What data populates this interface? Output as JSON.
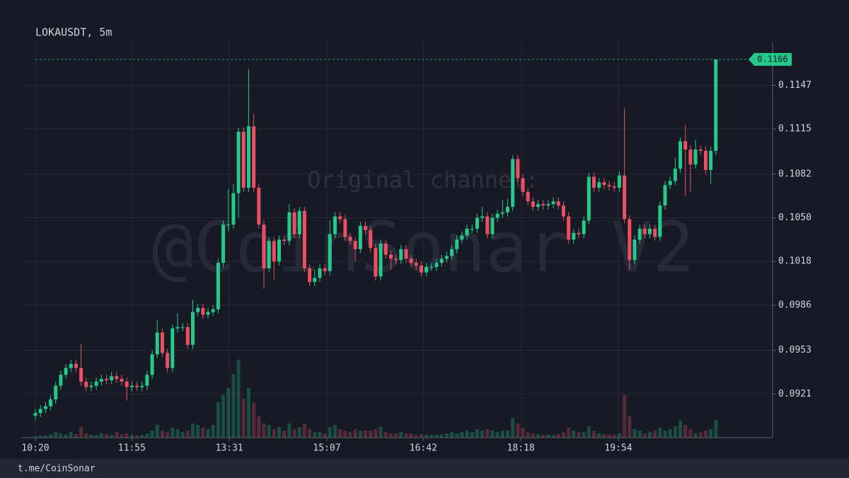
{
  "chart_data": {
    "type": "candlestick",
    "title": "LOKAUSDT, 5m",
    "watermark": [
      "Original channel:",
      "@CoinSonar V2"
    ],
    "up_color": "#26c88c",
    "down_color": "#ec4f63",
    "grid": true,
    "ylim": [
      0.0889,
      0.1168
    ],
    "yticks": [
      0.0921,
      0.0953,
      0.0986,
      0.1018,
      {
        "value": 0.105,
        "label": "0.1050"
      },
      0.1082,
      0.1115,
      0.1147
    ],
    "xticks": [
      "10:20",
      "11:55",
      "13:31",
      "15:07",
      "16:42",
      "18:18",
      "19:54"
    ],
    "x": [
      "10:20",
      "10:25",
      "10:30",
      "10:35",
      "10:40",
      "10:45",
      "10:50",
      "10:55",
      "11:00",
      "11:05",
      "11:10",
      "11:15",
      "11:20",
      "11:25",
      "11:30",
      "11:35",
      "11:40",
      "11:45",
      "11:50",
      "11:55",
      "12:00",
      "12:05",
      "12:10",
      "12:15",
      "12:20",
      "12:25",
      "12:30",
      "12:35",
      "12:40",
      "12:45",
      "12:50",
      "12:55",
      "13:00",
      "13:05",
      "13:10",
      "13:15",
      "13:20",
      "13:25",
      "13:30",
      "13:35",
      "13:40",
      "13:45",
      "13:50",
      "13:55",
      "14:00",
      "14:05",
      "14:10",
      "14:15",
      "14:20",
      "14:25",
      "14:30",
      "14:35",
      "14:40",
      "14:45",
      "14:50",
      "14:55",
      "15:00",
      "15:05",
      "15:10",
      "15:15",
      "15:20",
      "15:25",
      "15:30",
      "15:35",
      "15:40",
      "15:45",
      "15:50",
      "15:55",
      "16:00",
      "16:05",
      "16:10",
      "16:15",
      "16:20",
      "16:25",
      "16:30",
      "16:35",
      "16:40",
      "16:45",
      "16:50",
      "16:55",
      "17:00",
      "17:05",
      "17:10",
      "17:15",
      "17:20",
      "17:25",
      "17:30",
      "17:35",
      "17:40",
      "17:45",
      "17:50",
      "17:55",
      "18:00",
      "18:05",
      "18:10",
      "18:15",
      "18:20",
      "18:25",
      "18:30",
      "18:35",
      "18:40",
      "18:45",
      "18:50",
      "18:55",
      "19:00",
      "19:05",
      "19:10",
      "19:15",
      "19:20",
      "19:25",
      "19:30",
      "19:35",
      "19:40",
      "19:45",
      "19:50",
      "19:55",
      "20:00",
      "20:05",
      "20:10",
      "20:15",
      "20:20",
      "20:25",
      "20:30",
      "20:35",
      "20:40",
      "20:45",
      "20:50",
      "20:55",
      "21:00",
      "21:05",
      "21:10",
      "21:15",
      "21:20",
      "21:25",
      "21:30"
    ],
    "open": [
      0.0905,
      0.0907,
      0.091,
      0.0912,
      0.0917,
      0.0927,
      0.0935,
      0.094,
      0.0943,
      0.094,
      0.093,
      0.0926,
      0.0927,
      0.093,
      0.0932,
      0.0931,
      0.0934,
      0.0932,
      0.093,
      0.0926,
      0.0927,
      0.0926,
      0.0927,
      0.0935,
      0.095,
      0.0966,
      0.0951,
      0.094,
      0.0969,
      0.097,
      0.097,
      0.0957,
      0.0981,
      0.0984,
      0.0979,
      0.0981,
      0.0983,
      0.1017,
      0.1045,
      0.1045,
      0.1068,
      0.1113,
      0.1072,
      0.1117,
      0.1072,
      0.1045,
      0.1013,
      0.1033,
      0.1018,
      0.1034,
      0.1033,
      0.1054,
      0.1038,
      0.1055,
      0.1013,
      0.1003,
      0.1006,
      0.1013,
      0.1011,
      0.1038,
      0.1051,
      0.1049,
      0.1036,
      0.1033,
      0.1027,
      0.1044,
      0.1041,
      0.1028,
      0.1007,
      0.1031,
      0.1023,
      0.102,
      0.1019,
      0.1027,
      0.102,
      0.1017,
      0.1015,
      0.101,
      0.1014,
      0.1014,
      0.1017,
      0.102,
      0.1022,
      0.1027,
      0.1034,
      0.1037,
      0.1042,
      0.1042,
      0.105,
      0.1051,
      0.1038,
      0.105,
      0.1053,
      0.1054,
      0.1058,
      0.1093,
      0.1079,
      0.1069,
      0.1062,
      0.1058,
      0.106,
      0.1059,
      0.106,
      0.1062,
      0.1059,
      0.1051,
      0.1034,
      0.1039,
      0.1038,
      0.1048,
      0.108,
      0.1072,
      0.1076,
      0.1074,
      0.1073,
      0.1072,
      0.1081,
      0.1049,
      0.1019,
      0.1034,
      0.1042,
      0.1038,
      0.1042,
      0.1036,
      0.1059,
      0.1074,
      0.1077,
      0.1086,
      0.1106,
      0.11,
      0.1089,
      0.11,
      0.1099,
      0.1085,
      0.1099
    ],
    "high": [
      0.091,
      0.0913,
      0.0915,
      0.092,
      0.093,
      0.0938,
      0.0943,
      0.0946,
      0.0946,
      0.0958,
      0.0933,
      0.093,
      0.0933,
      0.0935,
      0.0935,
      0.0937,
      0.0937,
      0.0935,
      0.0933,
      0.093,
      0.093,
      0.093,
      0.0938,
      0.0953,
      0.0975,
      0.0969,
      0.0954,
      0.0972,
      0.098,
      0.0973,
      0.0973,
      0.099,
      0.0987,
      0.0987,
      0.0984,
      0.0986,
      0.102,
      0.1048,
      0.1071,
      0.1075,
      0.1116,
      0.1116,
      0.1159,
      0.1126,
      0.1075,
      0.1048,
      0.1036,
      0.1036,
      0.1037,
      0.1037,
      0.106,
      0.1057,
      0.1058,
      0.1058,
      0.1016,
      0.1012,
      0.1016,
      0.1016,
      0.1048,
      0.1054,
      0.1054,
      0.1052,
      0.1039,
      0.1036,
      0.1047,
      0.1047,
      0.1044,
      0.1031,
      0.1034,
      0.1034,
      0.1026,
      0.1023,
      0.103,
      0.103,
      0.1023,
      0.102,
      0.1018,
      0.1017,
      0.1017,
      0.102,
      0.1023,
      0.1025,
      0.103,
      0.1037,
      0.104,
      0.1045,
      0.1045,
      0.1053,
      0.1058,
      0.1054,
      0.1053,
      0.1056,
      0.1063,
      0.1064,
      0.1096,
      0.1096,
      0.1082,
      0.1072,
      0.1065,
      0.1063,
      0.1063,
      0.1063,
      0.1065,
      0.1065,
      0.1062,
      0.1054,
      0.1042,
      0.1042,
      0.1051,
      0.1083,
      0.1083,
      0.1079,
      0.1079,
      0.1077,
      0.1076,
      0.1084,
      0.113,
      0.1052,
      0.1037,
      0.1045,
      0.1045,
      0.1045,
      0.1045,
      0.1062,
      0.1077,
      0.108,
      0.1094,
      0.1109,
      0.1118,
      0.1103,
      0.1107,
      0.1103,
      0.1102,
      0.1102,
      0.1166
    ],
    "low": [
      0.0902,
      0.0904,
      0.0907,
      0.0909,
      0.0914,
      0.0924,
      0.0932,
      0.0937,
      0.0937,
      0.0927,
      0.0923,
      0.0923,
      0.0924,
      0.0927,
      0.0928,
      0.0928,
      0.0929,
      0.0927,
      0.0916,
      0.0923,
      0.0923,
      0.0923,
      0.0924,
      0.0932,
      0.0947,
      0.0948,
      0.0937,
      0.0937,
      0.0966,
      0.0967,
      0.0954,
      0.0954,
      0.0978,
      0.0976,
      0.0976,
      0.0978,
      0.098,
      0.1014,
      0.104,
      0.1042,
      0.105,
      0.1069,
      0.1069,
      0.1069,
      0.1042,
      0.0998,
      0.101,
      0.1005,
      0.1015,
      0.103,
      0.103,
      0.1035,
      0.1035,
      0.101,
      0.1,
      0.1,
      0.1003,
      0.1008,
      0.1008,
      0.1035,
      0.1046,
      0.1033,
      0.103,
      0.1018,
      0.1024,
      0.1038,
      0.1025,
      0.1004,
      0.1004,
      0.102,
      0.1012,
      0.1016,
      0.1016,
      0.1017,
      0.1014,
      0.1012,
      0.1007,
      0.1007,
      0.1011,
      0.1011,
      0.1014,
      0.1017,
      0.1019,
      0.1024,
      0.1031,
      0.1034,
      0.1039,
      0.1039,
      0.1047,
      0.1035,
      0.1035,
      0.1047,
      0.105,
      0.1051,
      0.1055,
      0.1076,
      0.1066,
      0.1059,
      0.1055,
      0.1055,
      0.1056,
      0.1056,
      0.1057,
      0.1056,
      0.1048,
      0.1031,
      0.1031,
      0.1035,
      0.1035,
      0.1045,
      0.1069,
      0.1069,
      0.1071,
      0.107,
      0.1069,
      0.1069,
      0.1046,
      0.1012,
      0.1016,
      0.1031,
      0.1035,
      0.1035,
      0.1033,
      0.1033,
      0.1056,
      0.1071,
      0.1074,
      0.1083,
      0.1066,
      0.1069,
      0.1086,
      0.1096,
      0.1082,
      0.1075,
      0.1096
    ],
    "close": [
      0.0907,
      0.091,
      0.0912,
      0.0917,
      0.0927,
      0.0935,
      0.094,
      0.0943,
      0.094,
      0.093,
      0.0926,
      0.0927,
      0.093,
      0.0932,
      0.0931,
      0.0934,
      0.0932,
      0.093,
      0.0926,
      0.0927,
      0.0926,
      0.0927,
      0.0935,
      0.095,
      0.0966,
      0.0951,
      0.094,
      0.0969,
      0.097,
      0.097,
      0.0957,
      0.0981,
      0.0984,
      0.0979,
      0.0981,
      0.0983,
      0.1017,
      0.1045,
      0.1045,
      0.1068,
      0.1113,
      0.1072,
      0.1117,
      0.1072,
      0.1045,
      0.1013,
      0.1033,
      0.1018,
      0.1034,
      0.1033,
      0.1054,
      0.1038,
      0.1055,
      0.1013,
      0.1003,
      0.1006,
      0.1013,
      0.1011,
      0.1038,
      0.1051,
      0.1049,
      0.1036,
      0.1033,
      0.1027,
      0.1044,
      0.1041,
      0.1028,
      0.1007,
      0.1031,
      0.1023,
      0.102,
      0.1019,
      0.1027,
      0.102,
      0.1017,
      0.1015,
      0.101,
      0.1014,
      0.1014,
      0.1017,
      0.102,
      0.1022,
      0.1027,
      0.1034,
      0.1037,
      0.1042,
      0.1042,
      0.105,
      0.1051,
      0.1038,
      0.105,
      0.1053,
      0.1054,
      0.1058,
      0.1093,
      0.1079,
      0.1069,
      0.1062,
      0.1058,
      0.106,
      0.1059,
      0.106,
      0.1062,
      0.1059,
      0.1051,
      0.1034,
      0.1039,
      0.1038,
      0.1048,
      0.108,
      0.1072,
      0.1076,
      0.1074,
      0.1073,
      0.1072,
      0.1081,
      0.1049,
      0.1019,
      0.1034,
      0.1042,
      0.1038,
      0.1042,
      0.1036,
      0.1059,
      0.1074,
      0.1077,
      0.1086,
      0.1106,
      0.11,
      0.1089,
      0.11,
      0.1099,
      0.1085,
      0.1099,
      0.1166
    ],
    "volume": [
      2,
      3,
      3,
      5,
      8,
      6,
      5,
      8,
      5,
      15,
      6,
      4,
      4,
      6,
      5,
      4,
      8,
      5,
      6,
      4,
      3,
      4,
      6,
      10,
      18,
      10,
      8,
      14,
      12,
      8,
      10,
      20,
      18,
      14,
      12,
      18,
      50,
      60,
      70,
      90,
      110,
      55,
      70,
      50,
      30,
      20,
      18,
      12,
      15,
      10,
      20,
      12,
      15,
      20,
      12,
      8,
      8,
      6,
      15,
      18,
      12,
      10,
      8,
      12,
      10,
      10,
      10,
      12,
      15,
      8,
      6,
      6,
      8,
      6,
      6,
      4,
      5,
      4,
      4,
      4,
      5,
      6,
      8,
      6,
      8,
      10,
      8,
      12,
      10,
      12,
      10,
      8,
      10,
      10,
      28,
      20,
      14,
      8,
      6,
      5,
      4,
      4,
      4,
      5,
      8,
      14,
      10,
      8,
      8,
      16,
      10,
      6,
      5,
      4,
      4,
      6,
      60,
      30,
      12,
      10,
      6,
      8,
      10,
      14,
      10,
      12,
      16,
      24,
      18,
      12,
      6,
      8,
      10,
      12,
      25
    ]
  },
  "footer": "t.me/CoinSonar"
}
